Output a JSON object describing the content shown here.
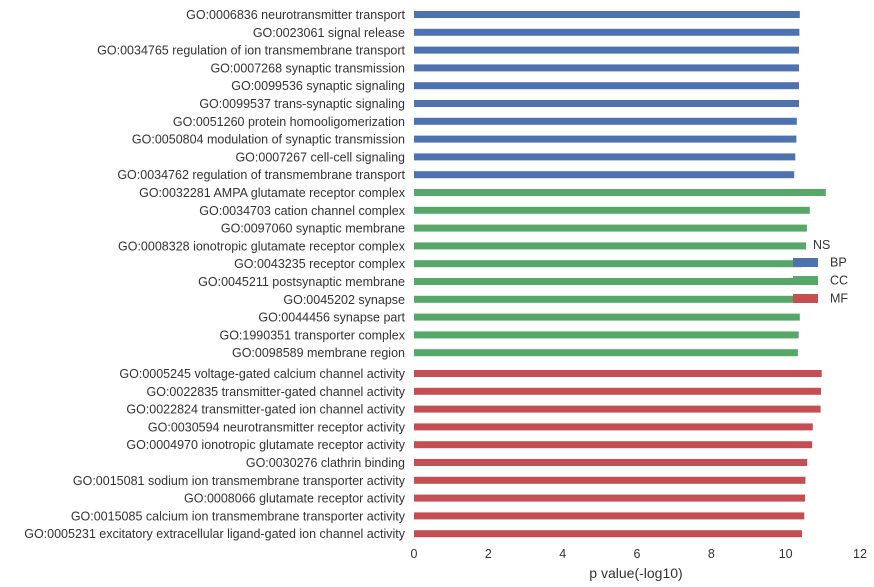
{
  "colors": {
    "BP": "#4c72b0",
    "CC": "#55a868",
    "MF": "#c44e52",
    "text": "#333333"
  },
  "chart_data": {
    "type": "bar",
    "orientation": "horizontal",
    "title": "",
    "xlabel": "p value(-log10)",
    "ylabel": "",
    "xlim": [
      0,
      12
    ],
    "xticks": [
      0,
      2,
      4,
      6,
      8,
      10,
      12
    ],
    "grid": false,
    "legend": {
      "title": "NS",
      "placement": "right",
      "entries": [
        "BP",
        "CC",
        "MF"
      ]
    },
    "categories": [
      "GO:0006836 neurotransmitter transport",
      "GO:0023061 signal release",
      "GO:0034765 regulation of ion transmembrane transport",
      "GO:0007268 synaptic transmission",
      "GO:0099536 synaptic signaling",
      "GO:0099537 trans-synaptic signaling",
      "GO:0051260 protein homooligomerization",
      "GO:0050804 modulation of synaptic transmission",
      "GO:0007267 cell-cell signaling",
      "GO:0034762 regulation of transmembrane transport",
      "GO:0032281 AMPA glutamate receptor complex",
      "GO:0034703 cation channel complex",
      "GO:0097060 synaptic membrane",
      "GO:0008328 ionotropic glutamate receptor complex",
      "GO:0043235 receptor complex",
      "GO:0045211 postsynaptic membrane",
      "GO:0045202 synapse",
      "GO:0044456 synapse part",
      "GO:1990351 transporter complex",
      "GO:0098589 membrane region",
      "GO:0005245 voltage-gated calcium channel activity",
      "GO:0022835 transmitter-gated channel activity",
      "GO:0022824 transmitter-gated ion channel activity",
      "GO:0030594 neurotransmitter receptor activity",
      "GO:0004970 ionotropic glutamate receptor activity",
      "GO:0030276 clathrin binding",
      "GO:0015081 sodium ion transmembrane transporter activity",
      "GO:0008066 glutamate receptor activity",
      "GO:0015085 calcium ion transmembrane transporter activity",
      "GO:0005231 excitatory extracellular ligand-gated ion channel activity"
    ],
    "groups": [
      "BP",
      "BP",
      "BP",
      "BP",
      "BP",
      "BP",
      "BP",
      "BP",
      "BP",
      "BP",
      "CC",
      "CC",
      "CC",
      "CC",
      "CC",
      "CC",
      "CC",
      "CC",
      "CC",
      "CC",
      "MF",
      "MF",
      "MF",
      "MF",
      "MF",
      "MF",
      "MF",
      "MF",
      "MF",
      "MF"
    ],
    "values": [
      10.38,
      10.37,
      10.36,
      10.36,
      10.36,
      10.36,
      10.3,
      10.29,
      10.26,
      10.23,
      11.08,
      10.65,
      10.57,
      10.55,
      10.42,
      10.41,
      10.41,
      10.38,
      10.35,
      10.33,
      10.97,
      10.95,
      10.94,
      10.73,
      10.71,
      10.58,
      10.53,
      10.52,
      10.5,
      10.44
    ]
  }
}
